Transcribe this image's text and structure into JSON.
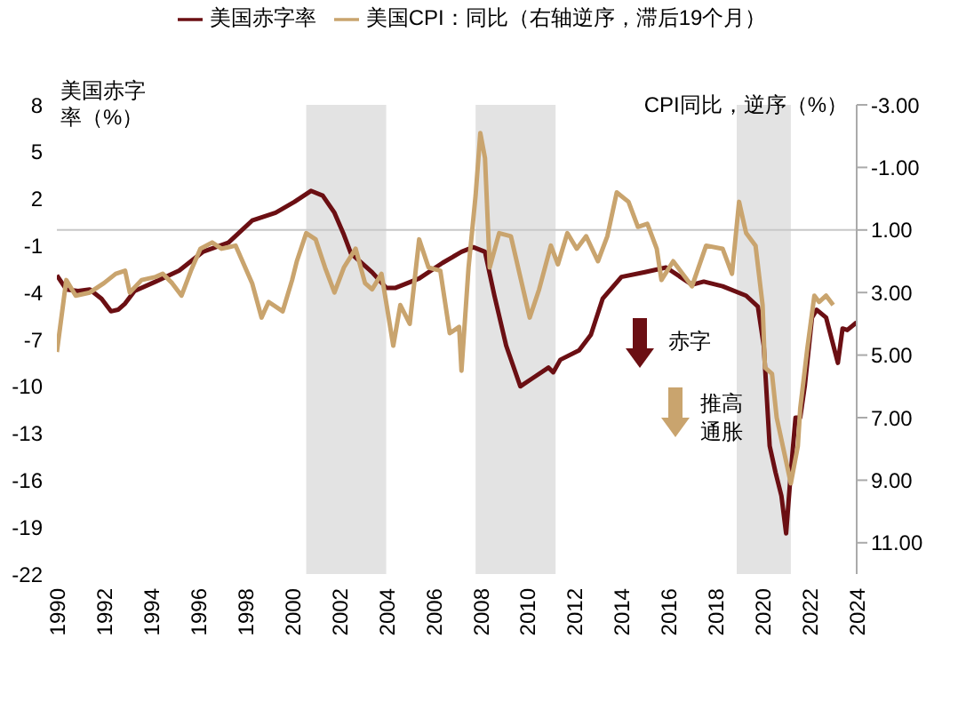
{
  "chart_data": {
    "type": "line",
    "ylabel": "美国赤字率（%）",
    "y2label": "CPI同比，逆序（%）",
    "annotations": [
      "赤字",
      "推高通胀"
    ],
    "series": [
      {
        "name": "美国赤字率",
        "color": "#6b0f13",
        "x": [
          1990,
          1990.4,
          1990.9,
          1991.4,
          1991.9,
          1992.3,
          1992.6,
          1992.9,
          1993.3,
          1994.2,
          1995.2,
          1996.2,
          1997.3,
          1998.3,
          1999.3,
          2000.1,
          2000.8,
          2001.3,
          2001.8,
          2002.2,
          2002.5,
          2003.4,
          2004,
          2004.4,
          2005.4,
          2006.4,
          2007.2,
          2007.7,
          2008.2,
          2008.6,
          2009.1,
          2009.7,
          2010.2,
          2010.9,
          2011.1,
          2011.4,
          2012.2,
          2012.7,
          2013.2,
          2014,
          2015,
          2015.9,
          2016.5,
          2017,
          2017.5,
          2018.3,
          2019.3,
          2019.8,
          2020.05,
          2020.3,
          2020.55,
          2020.8,
          2021,
          2021.2,
          2021.4,
          2021.6,
          2021.8,
          2022.1,
          2022.3,
          2022.7,
          2023.2,
          2023.4,
          2023.6,
          2024
        ],
        "values": [
          -2.9,
          -3.8,
          -3.9,
          -3.8,
          -4.4,
          -5.2,
          -5.1,
          -4.7,
          -3.9,
          -3.3,
          -2.6,
          -1.4,
          -0.8,
          0.6,
          1.1,
          1.8,
          2.5,
          2.2,
          1.1,
          -0.3,
          -1.5,
          -2.7,
          -3.7,
          -3.7,
          -3.1,
          -2.1,
          -1.4,
          -1.1,
          -1.4,
          -4.2,
          -7.4,
          -10,
          -9.5,
          -8.8,
          -9.1,
          -8.3,
          -7.7,
          -6.7,
          -4.4,
          -3,
          -2.7,
          -2.4,
          -3,
          -3.5,
          -3.3,
          -3.6,
          -4.2,
          -4.9,
          -7.4,
          -13.8,
          -15.5,
          -17,
          -19.4,
          -15.5,
          -12,
          -12,
          -9.9,
          -5.6,
          -5.1,
          -5.6,
          -8.5,
          -6.3,
          -6.4,
          -5.9
        ]
      },
      {
        "name": "美国CPI：同比（右轴逆序，滞后19个月）",
        "color": "#c9a46e",
        "axis": "y2",
        "x": [
          1990,
          1990.4,
          1990.8,
          1991.4,
          1992,
          1992.5,
          1992.9,
          1993.1,
          1993.6,
          1994.2,
          1994.5,
          1994.9,
          1995.3,
          1995.7,
          1996.1,
          1996.6,
          1997,
          1997.6,
          1998.3,
          1998.7,
          1999,
          1999.6,
          2000,
          2000.2,
          2000.6,
          2001,
          2001.4,
          2001.8,
          2002.2,
          2002.7,
          2003.1,
          2003.4,
          2003.8,
          2004.3,
          2004.6,
          2005,
          2005.4,
          2005.8,
          2006.3,
          2006.7,
          2007.1,
          2007.2,
          2007.5,
          2007.8,
          2008,
          2008.2,
          2008.4,
          2008.8,
          2009.3,
          2009.7,
          2010.1,
          2010.5,
          2011,
          2011.3,
          2011.7,
          2012.1,
          2012.5,
          2013,
          2013.4,
          2013.8,
          2014.3,
          2014.7,
          2015.1,
          2015.5,
          2015.7,
          2016.2,
          2017,
          2017.6,
          2018.3,
          2018.7,
          2019,
          2019.3,
          2019.7,
          2020,
          2020.1,
          2020.4,
          2020.6,
          2021,
          2021.2,
          2021.5,
          2021.6,
          2021.9,
          2022.2,
          2022.4,
          2022.7,
          2023
        ],
        "values": [
          4.9,
          2.6,
          3.1,
          3,
          2.7,
          2.4,
          2.3,
          3,
          2.6,
          2.5,
          2.4,
          2.7,
          3.1,
          2.3,
          1.6,
          1.4,
          1.6,
          1.5,
          2.7,
          3.8,
          3.3,
          3.6,
          2.6,
          2,
          1.1,
          1.3,
          2.2,
          3,
          2.2,
          1.6,
          2.7,
          2.9,
          2.4,
          4.7,
          3.4,
          4,
          1.3,
          2.2,
          2.3,
          4.3,
          4.1,
          5.5,
          2.2,
          -0.1,
          -2.1,
          -1.3,
          2.2,
          1.1,
          1.2,
          2.5,
          3.8,
          2.9,
          1.5,
          2.1,
          1.1,
          1.6,
          1.2,
          2,
          1.2,
          -0.2,
          0.1,
          0.9,
          0.8,
          1.6,
          2.6,
          2,
          2.8,
          1.5,
          1.6,
          2.4,
          0.1,
          1.1,
          1.5,
          3.4,
          5.4,
          5.6,
          7,
          8.4,
          9.1,
          7.9,
          6.7,
          4.8,
          3.1,
          3.3,
          3.1,
          3.4
        ]
      }
    ],
    "xlim": [
      1990,
      2024
    ],
    "xticks": [
      1990,
      1992,
      1994,
      1996,
      1998,
      2000,
      2002,
      2004,
      2006,
      2008,
      2010,
      2012,
      2014,
      2016,
      2018,
      2020,
      2022,
      2024
    ],
    "ylim": [
      -22,
      8
    ],
    "yticks": [
      8,
      5,
      2,
      -1,
      -4,
      -7,
      -10,
      -13,
      -16,
      -19,
      -22
    ],
    "y2lim": [
      12,
      -3
    ],
    "y2ticks": [
      {
        "value": -3,
        "label": "-3.00"
      },
      {
        "value": -1,
        "label": "-1.00"
      },
      {
        "value": 1,
        "label": "1.00"
      },
      {
        "value": 3,
        "label": "3.00"
      },
      {
        "value": 5,
        "label": "5.00"
      },
      {
        "value": 7,
        "label": "7.00"
      },
      {
        "value": 9,
        "label": "9.00"
      },
      {
        "value": 11,
        "label": "11.00"
      }
    ],
    "ref_lines": [
      {
        "axis": "y",
        "value": 0,
        "color": "#c8c8c8"
      }
    ],
    "bands": [
      {
        "axis": "x",
        "from": 2000.6,
        "to": 2004,
        "color": "#e3e3e3"
      },
      {
        "axis": "x",
        "from": 2007.8,
        "to": 2011.2,
        "color": "#e3e3e3"
      },
      {
        "axis": "x",
        "from": 2018.9,
        "to": 2021.2,
        "color": "#e3e3e3"
      }
    ],
    "grid": false,
    "legend": "top",
    "marker": "none",
    "line_style": "solid"
  }
}
